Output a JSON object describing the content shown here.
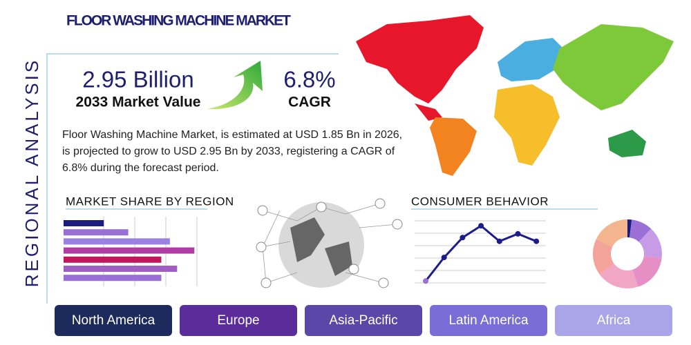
{
  "title": "FLOOR WASHING MACHINE MARKET",
  "side_label": "REGIONAL ANALYSIS",
  "stats": [
    {
      "value": "2.95 Billion",
      "label": "2033 Market Value"
    },
    {
      "value": "6.8%",
      "label": "CAGR"
    }
  ],
  "description": "Floor Washing Machine Market, is estimated at USD 1.85 Bn in 2026, is projected to grow to USD 2.95 Bn by 2033, registering a CAGR of 6.8% during the forecast period.",
  "chart_data": [
    {
      "type": "bar",
      "title": "MARKET SHARE BY REGION",
      "values": [
        28,
        45,
        74,
        91,
        68,
        79,
        68
      ],
      "colors": [
        "#1c1c7c",
        "#9a6fd6",
        "#9b82e2",
        "#b23ca6",
        "#c2185b",
        "#a05ec2",
        "#9a6fd6"
      ],
      "xlim": [
        0,
        100
      ]
    },
    {
      "type": "line",
      "title": "CONSUMER BEHAVIOR",
      "values": [
        3,
        41,
        73,
        92,
        67,
        79,
        67
      ],
      "color": "#1c1c8c",
      "ylim": [
        0,
        100
      ]
    },
    {
      "type": "pie",
      "values": [
        2,
        10,
        15,
        18,
        20,
        17,
        18
      ],
      "colors": [
        "#1c1c7c",
        "#9a6fd6",
        "#c79be6",
        "#e58fc4",
        "#f2a6c6",
        "#f3a39a",
        "#f2b58e"
      ]
    }
  ],
  "regions": [
    "North America",
    "Europe",
    "Asia-Pacific",
    "Latin America",
    "Africa"
  ]
}
